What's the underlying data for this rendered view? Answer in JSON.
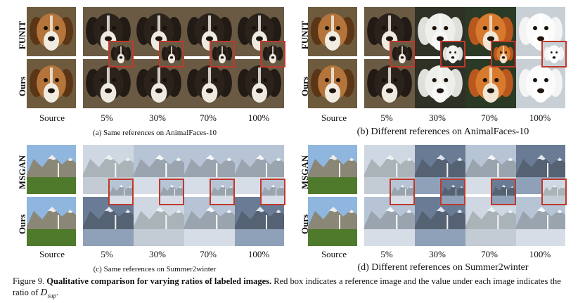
{
  "panels": {
    "a": {
      "caption": "(a) Same references on AnimalFaces-10",
      "row_labels": [
        "FUNIT",
        "Ours"
      ],
      "col_labels": [
        "Source",
        "5%",
        "30%",
        "70%",
        "100%"
      ]
    },
    "b": {
      "caption": "(b) Different references on AnimalFaces-10",
      "row_labels": [
        "FUNIT",
        "Ours"
      ],
      "col_labels": [
        "Source",
        "5%",
        "30%",
        "70%",
        "100%"
      ]
    },
    "c": {
      "caption": "(c) Same references on Summer2winter",
      "row_labels": [
        "MSGAN",
        "Ours"
      ],
      "col_labels": [
        "Source",
        "5%",
        "30%",
        "70%",
        "100%"
      ]
    },
    "d": {
      "caption": "(d) Different references on Summer2winter",
      "row_labels": [
        "MSGAN",
        "Ours"
      ],
      "col_labels": [
        "Source",
        "5%",
        "30%",
        "70%",
        "100%"
      ]
    }
  },
  "figure_caption": {
    "prefix": "Figure 9.",
    "bold": "Qualitative comparison for varying ratios of labeled images.",
    "rest": "Red box indicates a reference image and the value under each image indicates the ratio of",
    "symbol": "D",
    "subscript": "sup",
    "end": "."
  }
}
